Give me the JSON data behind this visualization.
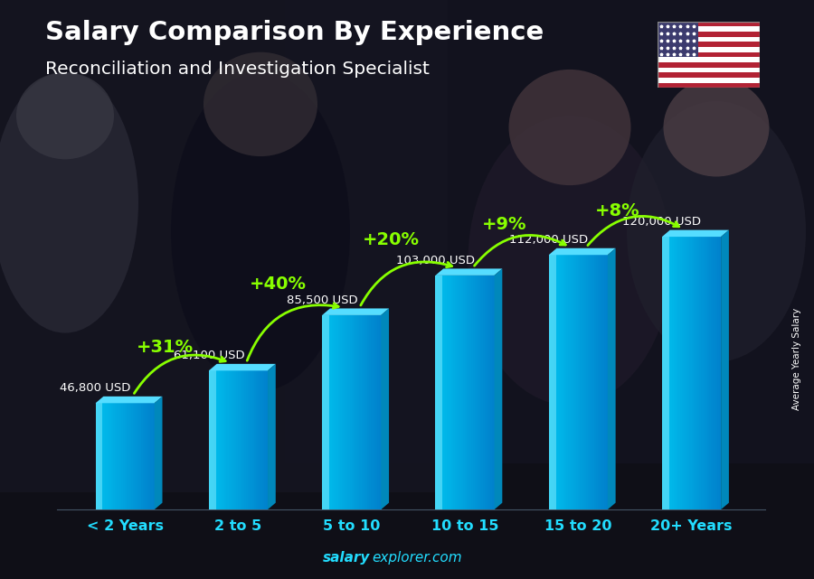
{
  "title_line1": "Salary Comparison By Experience",
  "title_line2": "Reconciliation and Investigation Specialist",
  "categories": [
    "< 2 Years",
    "2 to 5",
    "5 to 10",
    "10 to 15",
    "15 to 20",
    "20+ Years"
  ],
  "values": [
    46800,
    61100,
    85500,
    103000,
    112000,
    120000
  ],
  "labels": [
    "46,800 USD",
    "61,100 USD",
    "85,500 USD",
    "103,000 USD",
    "112,000 USD",
    "120,000 USD"
  ],
  "pct_labels": [
    "+31%",
    "+40%",
    "+20%",
    "+9%",
    "+8%"
  ],
  "bar_front_color": "#00c8f0",
  "bar_highlight_color": "#55e5ff",
  "bar_side_color": "#0099cc",
  "bar_dark_color": "#0077aa",
  "text_color_white": "#ffffff",
  "text_color_green": "#88ff00",
  "ylabel_text": "Average Yearly Salary",
  "footer_salary": "salary",
  "footer_rest": "explorer.com",
  "ymax": 135000,
  "flag_red": "#B22234",
  "flag_white": "#ffffff",
  "flag_blue": "#3C3B6E",
  "bg_dark": "#0a0a1a"
}
